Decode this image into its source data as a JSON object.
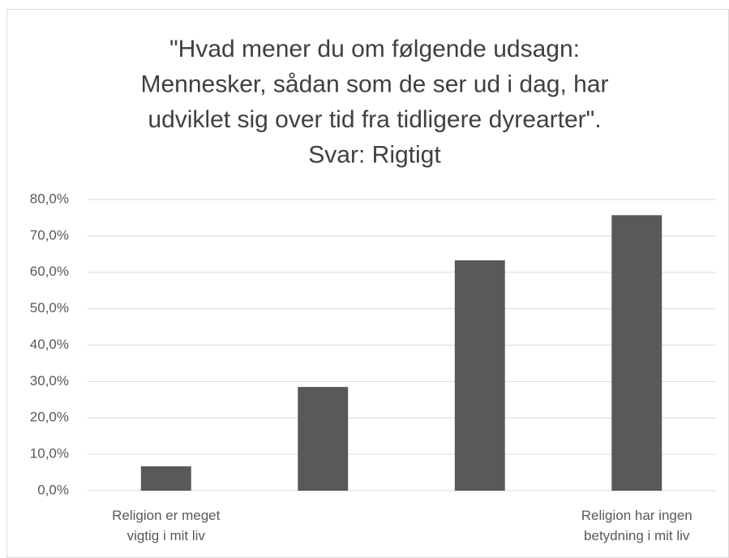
{
  "chart_data": {
    "type": "bar",
    "title": [
      "\"Hvad mener du om følgende udsagn:",
      "Mennesker, sådan som de ser ud i dag, har",
      "udviklet sig over tid fra tidligere dyrearter\".",
      "Svar: Rigtigt"
    ],
    "categories": [
      "Religion er meget vigtig i mit liv",
      null,
      null,
      "Religion har ingen betydning i mit liv"
    ],
    "values": [
      6.7,
      28.5,
      63.3,
      75.7
    ],
    "color": "#595959",
    "ylim": [
      0,
      80
    ],
    "yticks": [
      {
        "value": 0,
        "label": "0,0%"
      },
      {
        "value": 10,
        "label": "10,0%"
      },
      {
        "value": 20,
        "label": "20,0%"
      },
      {
        "value": 30,
        "label": "30,0%"
      },
      {
        "value": 40,
        "label": "40,0%"
      },
      {
        "value": 50,
        "label": "50,0%"
      },
      {
        "value": 60,
        "label": "60,0%"
      },
      {
        "value": 70,
        "label": "70,0%"
      },
      {
        "value": 80,
        "label": "80,0%"
      }
    ],
    "grid": true
  }
}
